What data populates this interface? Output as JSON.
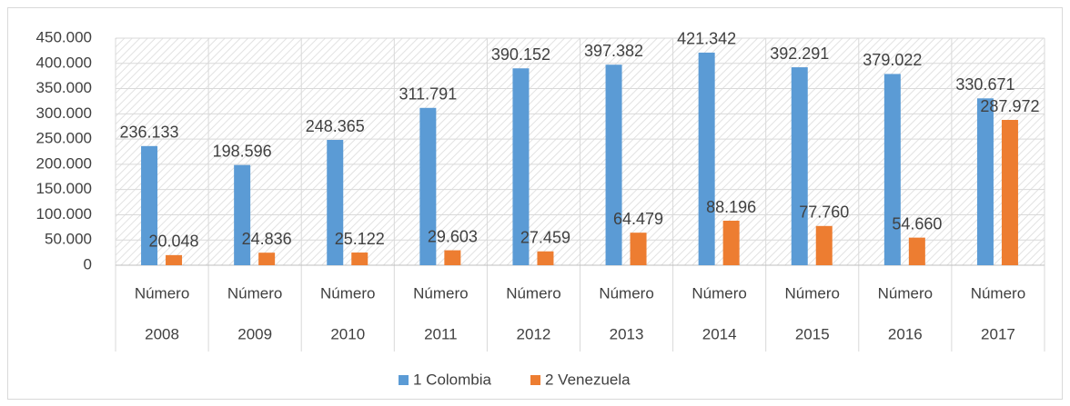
{
  "chart_data": {
    "type": "bar",
    "categories": [
      "2008",
      "2009",
      "2010",
      "2011",
      "2012",
      "2013",
      "2014",
      "2015",
      "2016",
      "2017"
    ],
    "category_sublabels": [
      "Número",
      "Número",
      "Número",
      "Número",
      "Número",
      "Número",
      "Número",
      "Número",
      "Número",
      "Número"
    ],
    "series": [
      {
        "name": "1 Colombia",
        "color": "#5b9bd5",
        "values": [
          236133,
          198596,
          248365,
          311791,
          390152,
          397382,
          421342,
          392291,
          379022,
          330671
        ],
        "value_labels": [
          "236.133",
          "198.596",
          "248.365",
          "311.791",
          "390.152",
          "397.382",
          "421.342",
          "392.291",
          "379.022",
          "330.671"
        ]
      },
      {
        "name": "2 Venezuela",
        "color": "#ed7d31",
        "values": [
          20048,
          24836,
          25122,
          29603,
          27459,
          64479,
          88196,
          77760,
          54660,
          287972
        ],
        "value_labels": [
          "20.048",
          "24.836",
          "25.122",
          "29.603",
          "27.459",
          "64.479",
          "88.196",
          "77.760",
          "54.660",
          "287.972"
        ]
      }
    ],
    "ylim": [
      0,
      450000
    ],
    "yticks": [
      0,
      {
        "value": 50000,
        "label": "50.000"
      },
      {
        "value": 100000,
        "label": "100.000"
      },
      {
        "value": 150000,
        "label": "150.000"
      },
      {
        "value": 200000,
        "label": "200.000"
      },
      {
        "value": 250000,
        "label": "250.000"
      },
      {
        "value": 300000,
        "label": "300.000"
      },
      {
        "value": 350000,
        "label": "350.000"
      },
      {
        "value": 400000,
        "label": "400.000"
      },
      {
        "value": 450000,
        "label": "450.000"
      }
    ],
    "grid": true,
    "legend": "bottom"
  }
}
